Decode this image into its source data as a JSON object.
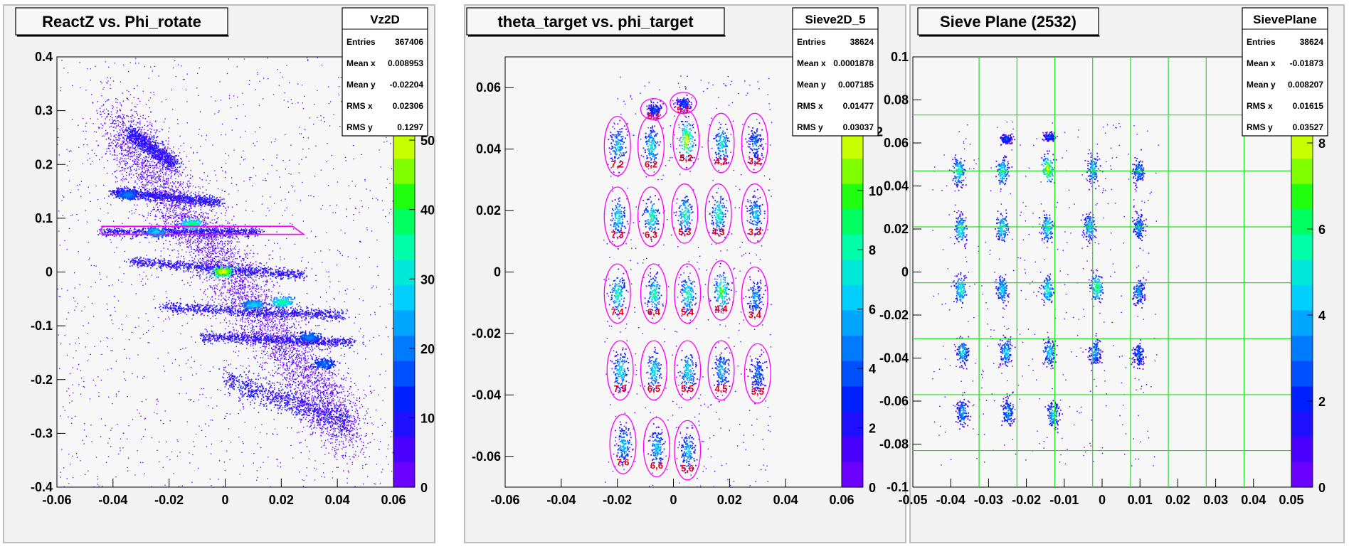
{
  "palette": [
    "#6a00ff",
    "#4a00ff",
    "#1f10ff",
    "#0020ff",
    "#0050ff",
    "#007bff",
    "#00a6ff",
    "#00cfff",
    "#00e8d8",
    "#00ffa8",
    "#00ff60",
    "#20ff10",
    "#80ff00",
    "#c8ff00",
    "#ffff00",
    "#ffe000",
    "#ffc000"
  ],
  "chart_data": [
    {
      "type": "heatmap",
      "title": "ReactZ vs. Phi_rotate",
      "xlim": [
        -0.06,
        0.06
      ],
      "ylim": [
        -0.4,
        0.4
      ],
      "x_ticks": [
        "-0.06",
        "-0.04",
        "-0.02",
        "0",
        "0.02",
        "0.04",
        "0.06"
      ],
      "y_ticks": [
        "-0.4",
        "-0.3",
        "-0.2",
        "-0.1",
        "0",
        "0.1",
        "0.2",
        "0.3",
        "0.4"
      ],
      "z_ticks": [
        "0",
        "10",
        "20",
        "30",
        "40",
        "50"
      ],
      "z_max": 62,
      "stats": {
        "name": "Vz2D",
        "rows": [
          {
            "k": "Entries",
            "v": "367406"
          },
          {
            "k": "Mean x",
            "v": "0.008953"
          },
          {
            "k": "Mean y",
            "v": "-0.02204"
          },
          {
            "k": "RMS x",
            "v": "0.02306"
          },
          {
            "k": "RMS y",
            "v": "0.1297"
          }
        ]
      },
      "bands": [
        {
          "x1": -0.034,
          "y1": 0.26,
          "x2": -0.018,
          "y2": 0.2,
          "w": 0.02
        },
        {
          "x1": -0.04,
          "y1": 0.15,
          "x2": -0.002,
          "y2": 0.13,
          "w": 0.012
        },
        {
          "x1": -0.044,
          "y1": 0.075,
          "x2": 0.012,
          "y2": 0.075,
          "w": 0.011
        },
        {
          "x1": -0.034,
          "y1": 0.02,
          "x2": 0.028,
          "y2": -0.005,
          "w": 0.012
        },
        {
          "x1": -0.022,
          "y1": -0.065,
          "x2": 0.042,
          "y2": -0.08,
          "w": 0.012
        },
        {
          "x1": -0.008,
          "y1": -0.12,
          "x2": 0.045,
          "y2": -0.13,
          "w": 0.012
        },
        {
          "x1": 0.0,
          "y1": -0.2,
          "x2": 0.044,
          "y2": -0.28,
          "w": 0.03
        }
      ],
      "hot_spots": [
        {
          "x": -0.012,
          "y": 0.09,
          "v": 40
        },
        {
          "x": -0.025,
          "y": 0.075,
          "v": 30
        },
        {
          "x": -0.001,
          "y": 0.002,
          "v": 55
        },
        {
          "x": 0.02,
          "y": -0.055,
          "v": 38
        },
        {
          "x": 0.01,
          "y": -0.06,
          "v": 30
        },
        {
          "x": 0.03,
          "y": -0.12,
          "v": 22
        },
        {
          "x": -0.035,
          "y": 0.145,
          "v": 22
        },
        {
          "x": 0.035,
          "y": -0.17,
          "v": 20
        }
      ],
      "cut_polygon": [
        [
          -0.044,
          0.085
        ],
        [
          0.024,
          0.085
        ],
        [
          0.028,
          0.07
        ],
        [
          -0.044,
          0.07
        ]
      ]
    },
    {
      "type": "heatmap",
      "title": "theta_target vs. phi_target",
      "xlim": [
        -0.06,
        0.06
      ],
      "ylim": [
        -0.07,
        0.07
      ],
      "x_ticks": [
        "-0.06",
        "-0.04",
        "-0.02",
        "0",
        "0.02",
        "0.04",
        "0.06"
      ],
      "y_ticks": [
        "-0.06",
        "-0.04",
        "-0.02",
        "0",
        "0.02",
        "0.04",
        "0.06"
      ],
      "z_ticks": [
        "0",
        "2",
        "4",
        "6",
        "8",
        "10",
        "12"
      ],
      "z_max": 14.5,
      "stats": {
        "name": "Sieve2D_5",
        "rows": [
          {
            "k": "Entries",
            "v": "38624"
          },
          {
            "k": "Mean x",
            "v": "0.0001878"
          },
          {
            "k": "Mean y",
            "v": "0.007185"
          },
          {
            "k": "RMS x",
            "v": "0.01477"
          },
          {
            "k": "RMS y",
            "v": "0.03037"
          }
        ]
      },
      "holes": [
        {
          "label": "6,1",
          "x": -0.007,
          "y": 0.053,
          "v": 4
        },
        {
          "label": "5,1",
          "x": 0.0035,
          "y": 0.055,
          "v": 4
        },
        {
          "label": "7,2",
          "x": -0.02,
          "y": 0.041,
          "v": 7
        },
        {
          "label": "6,2",
          "x": -0.008,
          "y": 0.041,
          "v": 8
        },
        {
          "label": "5,2",
          "x": 0.0045,
          "y": 0.043,
          "v": 13
        },
        {
          "label": "4,2",
          "x": 0.017,
          "y": 0.042,
          "v": 8
        },
        {
          "label": "3,2",
          "x": 0.029,
          "y": 0.042,
          "v": 5
        },
        {
          "label": "7,3",
          "x": -0.02,
          "y": 0.018,
          "v": 8
        },
        {
          "label": "6,3",
          "x": -0.008,
          "y": 0.018,
          "v": 9
        },
        {
          "label": "5,3",
          "x": 0.004,
          "y": 0.019,
          "v": 9
        },
        {
          "label": "4,3",
          "x": 0.016,
          "y": 0.019,
          "v": 9
        },
        {
          "label": "3,3",
          "x": 0.029,
          "y": 0.019,
          "v": 7
        },
        {
          "label": "7,4",
          "x": -0.02,
          "y": -0.007,
          "v": 9
        },
        {
          "label": "6,4",
          "x": -0.007,
          "y": -0.007,
          "v": 9
        },
        {
          "label": "5,4",
          "x": 0.005,
          "y": -0.007,
          "v": 9
        },
        {
          "label": "4,4",
          "x": 0.017,
          "y": -0.006,
          "v": 11
        },
        {
          "label": "3,4",
          "x": 0.029,
          "y": -0.008,
          "v": 6
        },
        {
          "label": "7,5",
          "x": -0.019,
          "y": -0.032,
          "v": 8
        },
        {
          "label": "6,5",
          "x": -0.007,
          "y": -0.032,
          "v": 8
        },
        {
          "label": "5,5",
          "x": 0.005,
          "y": -0.032,
          "v": 8
        },
        {
          "label": "4,5",
          "x": 0.017,
          "y": -0.032,
          "v": 7
        },
        {
          "label": "3,5",
          "x": 0.03,
          "y": -0.033,
          "v": 5
        },
        {
          "label": "7,6",
          "x": -0.018,
          "y": -0.056,
          "v": 7
        },
        {
          "label": "6,6",
          "x": -0.006,
          "y": -0.057,
          "v": 7
        },
        {
          "label": "5,6",
          "x": 0.005,
          "y": -0.058,
          "v": 7
        }
      ]
    },
    {
      "type": "heatmap",
      "title": "Sieve Plane (2532)",
      "xlim": [
        -0.05,
        0.05
      ],
      "ylim": [
        -0.1,
        0.1
      ],
      "x_ticks": [
        "-0.05",
        "-0.04",
        "-0.03",
        "-0.02",
        "-0.01",
        "0",
        "0.01",
        "0.02",
        "0.03",
        "0.04",
        "0.05"
      ],
      "y_ticks": [
        "-0.1",
        "-0.08",
        "-0.06",
        "-0.04",
        "-0.02",
        "0",
        "0.02",
        "0.04",
        "0.06",
        "0.08",
        "0.1"
      ],
      "z_ticks": [
        "0",
        "2",
        "4",
        "6",
        "8"
      ],
      "z_max": 10,
      "stats": {
        "name": "SievePlane",
        "rows": [
          {
            "k": "Entries",
            "v": "38624"
          },
          {
            "k": "Mean x",
            "v": "-0.01873"
          },
          {
            "k": "Mean y",
            "v": "0.008207"
          },
          {
            "k": "RMS x",
            "v": "0.01615"
          },
          {
            "k": "RMS y",
            "v": "0.03527"
          }
        ]
      },
      "grid_x": [
        -0.0325,
        -0.0225,
        -0.0125,
        -0.0025,
        0.0075,
        0.0175,
        0.0275,
        0.0375
      ],
      "grid_y": [
        0.073,
        0.047,
        0.021,
        -0.005,
        -0.031,
        -0.057,
        -0.083
      ],
      "holes": [
        {
          "x": -0.0255,
          "y": 0.062,
          "v": 3
        },
        {
          "x": -0.014,
          "y": 0.063,
          "v": 3
        },
        {
          "x": -0.038,
          "y": 0.047,
          "v": 6
        },
        {
          "x": -0.0265,
          "y": 0.047,
          "v": 6
        },
        {
          "x": -0.0145,
          "y": 0.048,
          "v": 9
        },
        {
          "x": -0.0025,
          "y": 0.048,
          "v": 5
        },
        {
          "x": 0.0095,
          "y": 0.047,
          "v": 4
        },
        {
          "x": -0.0375,
          "y": 0.02,
          "v": 6
        },
        {
          "x": -0.0265,
          "y": 0.021,
          "v": 6
        },
        {
          "x": -0.0145,
          "y": 0.021,
          "v": 6
        },
        {
          "x": -0.0035,
          "y": 0.021,
          "v": 5
        },
        {
          "x": 0.0095,
          "y": 0.021,
          "v": 4
        },
        {
          "x": -0.0375,
          "y": -0.008,
          "v": 6
        },
        {
          "x": -0.0265,
          "y": -0.008,
          "v": 5
        },
        {
          "x": -0.0145,
          "y": -0.008,
          "v": 6
        },
        {
          "x": -0.0015,
          "y": -0.007,
          "v": 7
        },
        {
          "x": 0.0095,
          "y": -0.009,
          "v": 4
        },
        {
          "x": -0.037,
          "y": -0.037,
          "v": 5
        },
        {
          "x": -0.0255,
          "y": -0.037,
          "v": 5
        },
        {
          "x": -0.014,
          "y": -0.037,
          "v": 5
        },
        {
          "x": -0.002,
          "y": -0.037,
          "v": 4
        },
        {
          "x": 0.0095,
          "y": -0.038,
          "v": 3
        },
        {
          "x": -0.037,
          "y": -0.065,
          "v": 4
        },
        {
          "x": -0.025,
          "y": -0.065,
          "v": 4
        },
        {
          "x": -0.013,
          "y": -0.066,
          "v": 5
        }
      ]
    }
  ]
}
